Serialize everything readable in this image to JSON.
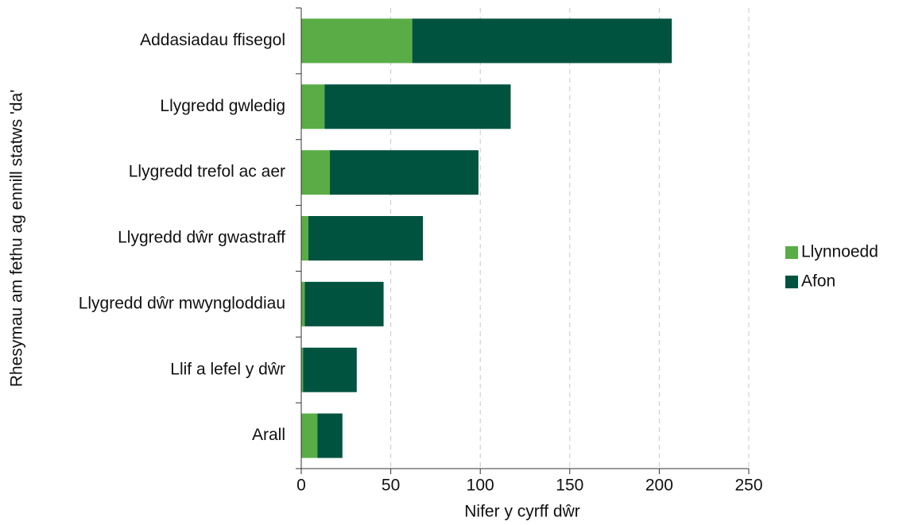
{
  "chart_data": {
    "type": "hbar_stacked",
    "xlabel": "Nifer y cyrff dŵr",
    "ylabel": "Rhesymau am fethu ag ennill statws 'da'",
    "categories": [
      "Addasiadau ffisegol",
      "Llygredd gwledig",
      "Llygredd trefol ac aer",
      "Llygredd dŵr gwastraff",
      "Llygredd dŵr mwyngloddiau",
      "Llif a lefel y dŵr",
      "Arall"
    ],
    "series": [
      {
        "name": "Llynnoedd",
        "color": "#5aad46",
        "values": [
          62,
          13,
          16,
          4,
          2,
          1,
          9
        ]
      },
      {
        "name": "Afon",
        "color": "#00533f",
        "values": [
          145,
          104,
          83,
          64,
          44,
          30,
          14
        ]
      }
    ],
    "xlim": [
      0,
      250
    ],
    "xticks": [
      0,
      50,
      100,
      150,
      200,
      250
    ],
    "grid": true,
    "legend": "right"
  }
}
